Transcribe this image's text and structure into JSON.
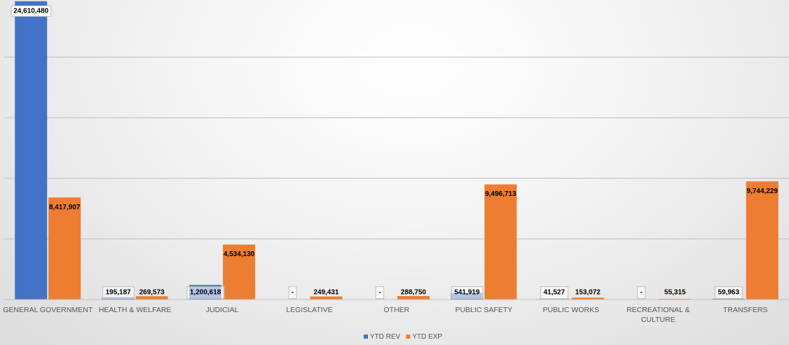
{
  "chart_data": {
    "type": "bar",
    "title": "",
    "xlabel": "",
    "ylabel": "",
    "ylim": [
      0,
      25000000
    ],
    "grid": true,
    "legend_position": "bottom",
    "categories": [
      "GENERAL GOVERNMENT",
      "HEALTH & WELFARE",
      "JUDICIAL",
      "LEGISLATIVE",
      "OTHER",
      "PUBLIC SAFETY",
      "PUBLIC WORKS",
      "RECREATIONAL & CULTURE",
      "TRANSFERS"
    ],
    "series": [
      {
        "name": "YTD REV",
        "color": "#4472C4",
        "values": [
          24610480,
          195187,
          1200618,
          0,
          0,
          541919,
          41527,
          0,
          59963
        ],
        "labels": [
          "24,610,480",
          "195,187",
          "1,200,618",
          "-",
          "-",
          "541,919",
          "41,527",
          "-",
          "59,963"
        ]
      },
      {
        "name": "YTD EXP",
        "color": "#ED7D31",
        "values": [
          8417907,
          269573,
          4534130,
          249431,
          288750,
          9496713,
          153072,
          55315,
          9744229
        ],
        "labels": [
          "8,417,907",
          "269,573",
          "4,534,130",
          "249,431",
          "288,750",
          "9,496,713",
          "153,072",
          "55,315",
          "9,744,229"
        ]
      }
    ]
  }
}
